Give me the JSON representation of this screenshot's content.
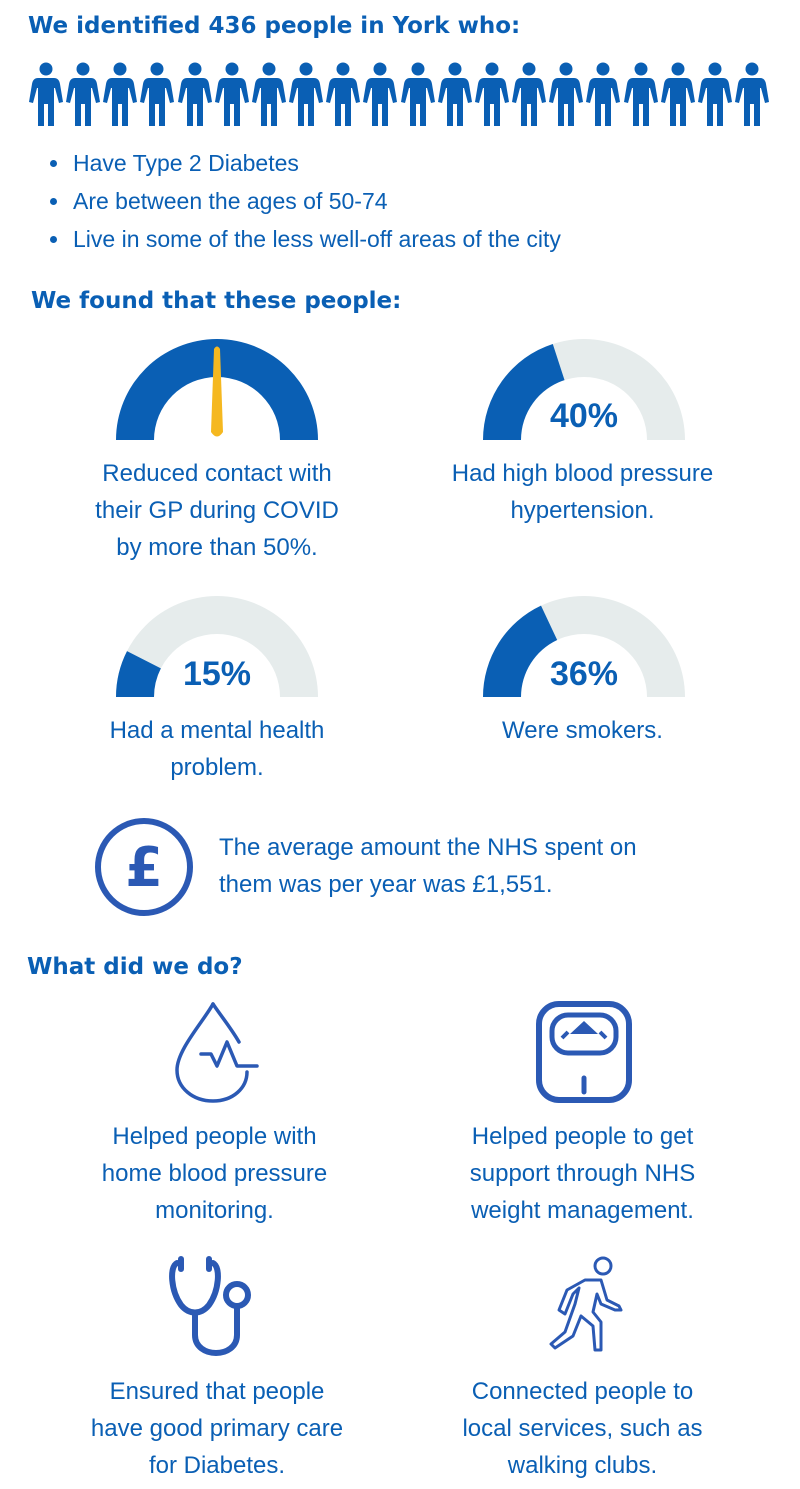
{
  "intro": {
    "heading": "We identified 436 people in York who:",
    "people_icon_count": 20,
    "bullets": [
      "Have Type 2 Diabetes",
      "Are between the ages of 50-74",
      "Live in some of the less well-off areas of the city"
    ]
  },
  "findings": {
    "heading": "We found that these people:",
    "gp_contact": {
      "caption": "Reduced contact with their GP during COVID by more than 50%.",
      "caption_lines": [
        "Reduced contact with",
        "their GP during COVID",
        "by more than 50%."
      ],
      "needle_value": 0.5
    },
    "hypertension": {
      "value": 40,
      "label": "40%",
      "caption_lines": [
        "Had high blood pressure",
        "hypertension."
      ]
    },
    "mental_health": {
      "value": 15,
      "label": "15%",
      "caption_lines": [
        "Had a mental health",
        "problem."
      ]
    },
    "smokers": {
      "value": 36,
      "label": "36%",
      "caption_lines": [
        "Were smokers."
      ]
    },
    "spend": {
      "icon": "pound-icon",
      "lines": [
        "The average amount the NHS spent on",
        "them was per year was £1,551."
      ]
    }
  },
  "actions": {
    "heading": "What did we do?",
    "items": [
      {
        "icon": "blood-drop-icon",
        "lines": [
          "Helped people with",
          "home blood pressure",
          "monitoring."
        ]
      },
      {
        "icon": "scale-icon",
        "lines": [
          "Helped people to get",
          "support through NHS",
          "weight management."
        ]
      },
      {
        "icon": "stethoscope-icon",
        "lines": [
          "Ensured that people",
          "have good primary care",
          "for Diabetes."
        ]
      },
      {
        "icon": "walking-person-icon",
        "lines": [
          "Connected people to",
          "local services, such as",
          "walking clubs."
        ]
      }
    ]
  },
  "colors": {
    "primary": "#0a5fb4",
    "gauge_track": "#e6ecec",
    "needle": "#f5b820",
    "icon_stroke": "#2b59b4"
  }
}
